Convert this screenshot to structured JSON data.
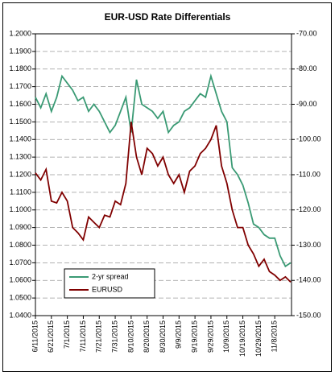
{
  "chart_data": {
    "type": "line",
    "title": "EUR-USD Rate Differentials",
    "categories": [
      "6/11/2015",
      null,
      null,
      "6/21/2015",
      null,
      null,
      "7/1/2015",
      null,
      null,
      "7/11/2015",
      null,
      null,
      "7/21/2015",
      null,
      null,
      "7/31/2015",
      null,
      null,
      "8/10/2015",
      null,
      null,
      "8/20/2015",
      null,
      null,
      "8/30/2015",
      null,
      null,
      "9/9/2015",
      null,
      null,
      "9/19/2015",
      null,
      null,
      "9/29/2015",
      null,
      null,
      "10/9/2015",
      null,
      null,
      "10/19/2015",
      null,
      null,
      "10/29/2015",
      null,
      null,
      "11/8/2015",
      null,
      null,
      null
    ],
    "series": [
      {
        "name": "2-yr spread",
        "color": "#3a9a74",
        "axis": "y2",
        "values": [
          -88,
          -91,
          -87,
          -92,
          -88,
          -82,
          -84,
          -86,
          -89,
          -88,
          -92,
          -90,
          -92,
          -95,
          -98,
          -96,
          -92,
          -88,
          -98,
          -83,
          -90,
          -91,
          -92,
          -94,
          -92,
          -98,
          -96,
          -95,
          -92,
          -91,
          -89,
          -87,
          -88,
          -82,
          -87,
          -92,
          -95,
          -108,
          -110,
          -113,
          -118,
          -124,
          -125,
          -127,
          -128,
          -128,
          -133,
          -136,
          -135
        ]
      },
      {
        "name": "EURUSD",
        "color": "#800000",
        "values": [
          1.121,
          1.117,
          1.123,
          1.105,
          1.104,
          1.11,
          1.105,
          1.09,
          1.087,
          1.083,
          1.096,
          1.093,
          1.09,
          1.097,
          1.096,
          1.105,
          1.103,
          1.115,
          1.15,
          1.13,
          1.12,
          1.135,
          1.132,
          1.125,
          1.13,
          1.12,
          1.115,
          1.12,
          1.11,
          1.122,
          1.125,
          1.132,
          1.135,
          1.14,
          1.148,
          1.125,
          1.115,
          1.1,
          1.09,
          1.09,
          1.08,
          1.075,
          1.068,
          1.072,
          1.065,
          1.063,
          1.06,
          1.062,
          1.059
        ]
      }
    ],
    "ylim": [
      1.04,
      1.2
    ],
    "yticks": [
      {
        "value": 1.04,
        "label": "1.0400"
      },
      {
        "value": 1.05,
        "label": "1.0500"
      },
      {
        "value": 1.06,
        "label": "1.0600"
      },
      {
        "value": 1.07,
        "label": "1.0700"
      },
      {
        "value": 1.08,
        "label": "1.0800"
      },
      {
        "value": 1.09,
        "label": "1.0900"
      },
      {
        "value": 1.1,
        "label": "1.1000"
      },
      {
        "value": 1.11,
        "label": "1.1100"
      },
      {
        "value": 1.12,
        "label": "1.1200"
      },
      {
        "value": 1.13,
        "label": "1.1300"
      },
      {
        "value": 1.14,
        "label": "1.1400"
      },
      {
        "value": 1.15,
        "label": "1.1500"
      },
      {
        "value": 1.16,
        "label": "1.1600"
      },
      {
        "value": 1.17,
        "label": "1.1700"
      },
      {
        "value": 1.18,
        "label": "1.1800"
      },
      {
        "value": 1.19,
        "label": "1.1900"
      },
      {
        "value": 1.2,
        "label": "1.2000"
      }
    ],
    "y2lim": [
      -150,
      -70
    ],
    "y2ticks": [
      {
        "value": -150,
        "label": "-150.00"
      },
      {
        "value": -140,
        "label": "-140.00"
      },
      {
        "value": -130,
        "label": "-130.00"
      },
      {
        "value": -120,
        "label": "-120.00"
      },
      {
        "value": -110,
        "label": "-110.00"
      },
      {
        "value": -100,
        "label": "-100.00"
      },
      {
        "value": -90,
        "label": "-90.00"
      },
      {
        "value": -80,
        "label": "-80.00"
      },
      {
        "value": -70,
        "label": "-70.00"
      }
    ],
    "grid": true,
    "legend": "lower left"
  }
}
